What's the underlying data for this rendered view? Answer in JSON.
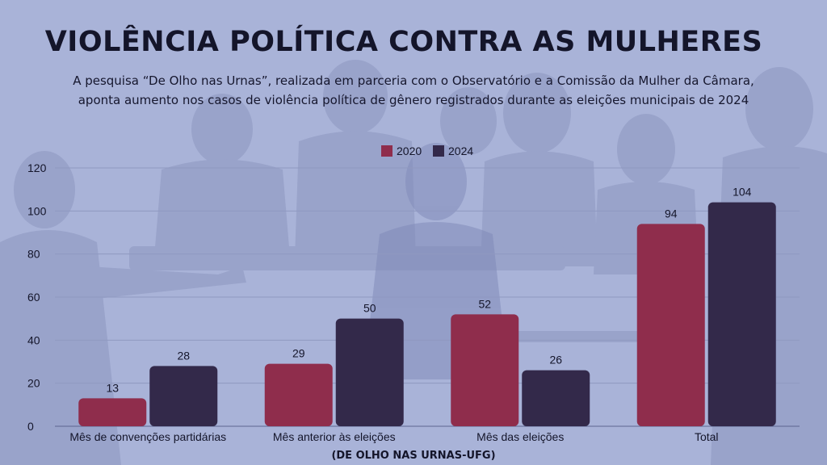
{
  "title": "VIOLÊNCIA POLÍTICA CONTRA AS MULHERES",
  "subtitle": [
    "A pesquisa “De Olho nas Urnas”, realizada em parceria com o Observatório e a Comissão da Mulher da Câmara,",
    "aponta aumento nos casos de violência política de gênero registrados durante as eleições municipais de 2024"
  ],
  "source": "(DE OLHO NAS URNAS-UFG)",
  "colors": {
    "background": "#a9b3d8",
    "series_2020": "#8f2d4c",
    "series_2024": "#33294a",
    "text": "#14152a"
  },
  "chart_data": {
    "type": "bar",
    "categories": [
      "Mês de convenções partidárias",
      "Mês anterior às eleições",
      "Mês das eleições",
      "Total"
    ],
    "series": [
      {
        "name": "2020",
        "values": [
          13,
          29,
          52,
          94
        ],
        "color": "#8f2d4c"
      },
      {
        "name": "2024",
        "values": [
          28,
          50,
          26,
          104
        ],
        "color": "#33294a"
      }
    ],
    "ylim": [
      0,
      120
    ],
    "yticks": [
      0,
      20,
      40,
      60,
      80,
      100,
      120
    ],
    "grid": true,
    "legend_position": "top-center",
    "data_labels": true
  }
}
